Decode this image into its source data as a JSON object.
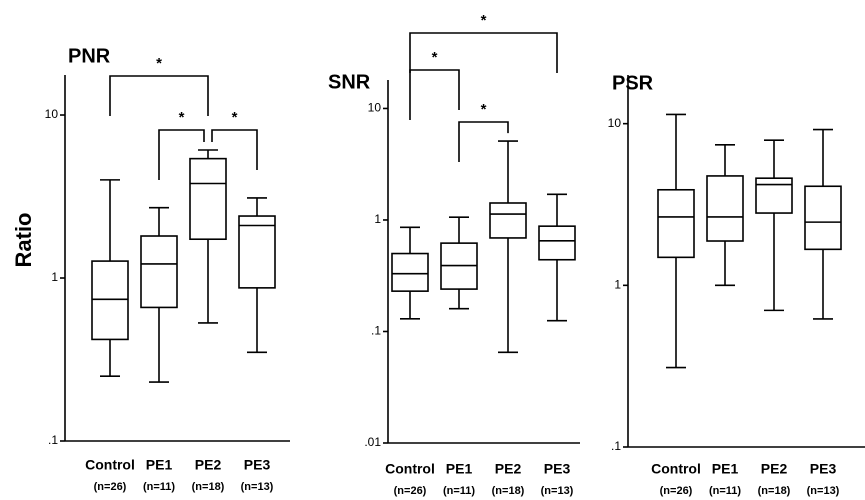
{
  "ylabel": "Ratio",
  "chart_data": [
    {
      "type": "box",
      "title": "PNR",
      "log_scale": true,
      "categories": [
        "Control",
        "PE1",
        "PE2",
        "PE3"
      ],
      "sample_sizes": [
        "(n=26)",
        "(n=11)",
        "(n=18)",
        "(n=13)"
      ],
      "ylim": [
        0.1,
        17.6
      ],
      "yticks": [
        {
          "value": 0.1,
          "label": ".1"
        },
        1,
        10
      ],
      "boxes": [
        {
          "min": 0.25,
          "q1": 0.42,
          "median": 0.74,
          "q3": 1.27,
          "max": 4.0
        },
        {
          "min": 0.23,
          "q1": 0.66,
          "median": 1.22,
          "q3": 1.81,
          "max": 2.7
        },
        {
          "min": 0.53,
          "q1": 1.73,
          "median": 3.8,
          "q3": 5.4,
          "max": 6.1
        },
        {
          "min": 0.35,
          "q1": 0.87,
          "median": 2.1,
          "q3": 2.4,
          "max": 3.1
        }
      ],
      "brackets": [
        {
          "between": [
            "Control",
            "PE2"
          ],
          "label": "*"
        },
        {
          "between": [
            "PE1",
            "PE2"
          ],
          "label": "*"
        },
        {
          "between": [
            "PE2",
            "PE3"
          ],
          "label": "*"
        }
      ]
    },
    {
      "type": "box",
      "title": "SNR",
      "log_scale": true,
      "categories": [
        "Control",
        "PE1",
        "PE2",
        "PE3"
      ],
      "sample_sizes": [
        "(n=26)",
        "(n=11)",
        "(n=18)",
        "(n=13)"
      ],
      "ylim": [
        0.01,
        18
      ],
      "yticks": [
        {
          "value": 0.01,
          "label": ".01"
        },
        {
          "value": 0.1,
          "label": ".1"
        },
        1,
        10
      ],
      "boxes": [
        {
          "min": 0.13,
          "q1": 0.23,
          "median": 0.33,
          "q3": 0.5,
          "max": 0.86
        },
        {
          "min": 0.16,
          "q1": 0.24,
          "median": 0.39,
          "q3": 0.62,
          "max": 1.06
        },
        {
          "min": 0.065,
          "q1": 0.69,
          "median": 1.13,
          "q3": 1.42,
          "max": 5.1
        },
        {
          "min": 0.125,
          "q1": 0.44,
          "median": 0.65,
          "q3": 0.88,
          "max": 1.7
        }
      ],
      "brackets": [
        {
          "between": [
            "Control",
            "PE3"
          ],
          "label": "*"
        },
        {
          "between": [
            "Control",
            "PE1"
          ],
          "label": "*"
        },
        {
          "between": [
            "PE1",
            "PE2"
          ],
          "label": "*"
        }
      ]
    },
    {
      "type": "box",
      "title": "PSR",
      "log_scale": true,
      "categories": [
        "Control",
        "PE1",
        "PE2",
        "PE3"
      ],
      "sample_sizes": [
        "(n=26)",
        "(n=11)",
        "(n=18)",
        "(n=13)"
      ],
      "ylim": [
        0.1,
        20
      ],
      "yticks": [
        {
          "value": 0.1,
          "label": ".1"
        },
        1,
        10
      ],
      "boxes": [
        {
          "min": 0.31,
          "q1": 1.49,
          "median": 2.65,
          "q3": 3.9,
          "max": 11.4
        },
        {
          "min": 1.0,
          "q1": 1.88,
          "median": 2.65,
          "q3": 4.75,
          "max": 7.4
        },
        {
          "min": 0.7,
          "q1": 2.8,
          "median": 4.2,
          "q3": 4.6,
          "max": 7.9
        },
        {
          "min": 0.62,
          "q1": 1.67,
          "median": 2.46,
          "q3": 4.1,
          "max": 9.2
        }
      ],
      "brackets": []
    }
  ]
}
